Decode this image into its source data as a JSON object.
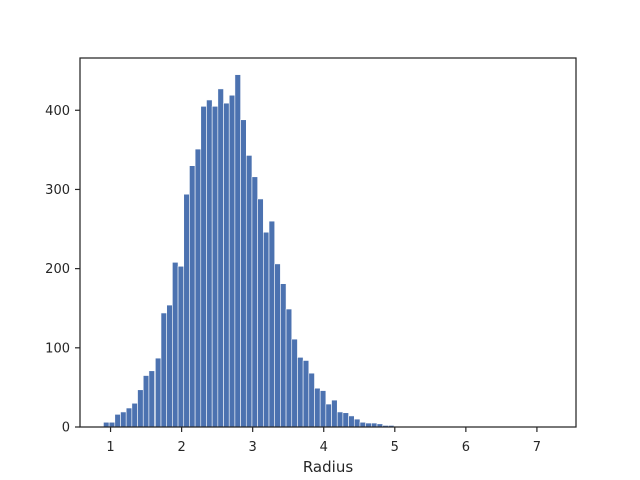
{
  "chart_data": {
    "type": "bar",
    "title": "",
    "xlabel": "Radius",
    "ylabel": "",
    "xlim": [
      0.57,
      7.55
    ],
    "ylim": [
      0,
      466
    ],
    "bin_width": 0.0805,
    "x": [
      0.94,
      1.02,
      1.1,
      1.18,
      1.26,
      1.34,
      1.42,
      1.5,
      1.58,
      1.67,
      1.75,
      1.83,
      1.91,
      1.99,
      2.07,
      2.15,
      2.23,
      2.31,
      2.39,
      2.47,
      2.55,
      2.63,
      2.71,
      2.79,
      2.87,
      2.95,
      3.03,
      3.11,
      3.19,
      3.27,
      3.35,
      3.43,
      3.51,
      3.59,
      3.67,
      3.75,
      3.83,
      3.91,
      3.99,
      4.07,
      4.15,
      4.23,
      4.31,
      4.39,
      4.47,
      4.55,
      4.63,
      4.71,
      4.79,
      4.87,
      4.95,
      5.03,
      5.11,
      5.19,
      5.27,
      5.35,
      5.43,
      5.51,
      5.59,
      5.67,
      5.75,
      5.83,
      5.91,
      5.99,
      6.07,
      6.15,
      6.23,
      6.31,
      6.39,
      6.47,
      6.55,
      6.63,
      6.71,
      6.79,
      6.87,
      6.95,
      7.03,
      7.11,
      7.19
    ],
    "values": [
      6,
      6,
      16,
      19,
      24,
      30,
      47,
      65,
      71,
      87,
      144,
      154,
      208,
      203,
      294,
      330,
      351,
      405,
      413,
      405,
      427,
      409,
      419,
      445,
      388,
      343,
      316,
      288,
      246,
      260,
      206,
      181,
      149,
      111,
      88,
      84,
      68,
      49,
      46,
      29,
      34,
      19,
      18,
      14,
      10,
      6,
      5,
      5,
      4,
      2,
      2,
      1,
      1,
      1,
      1,
      1,
      1,
      1,
      1,
      1,
      1,
      0,
      1,
      1,
      0,
      1,
      0,
      1,
      0,
      0,
      0,
      0,
      1,
      0,
      0,
      0,
      0,
      1,
      1
    ],
    "xticks": [
      1,
      2,
      3,
      4,
      5,
      6,
      7
    ],
    "yticks": [
      0,
      100,
      200,
      300,
      400
    ],
    "grid": false,
    "colors": {
      "bar": "#4c72b0",
      "axis": "#262626"
    }
  }
}
